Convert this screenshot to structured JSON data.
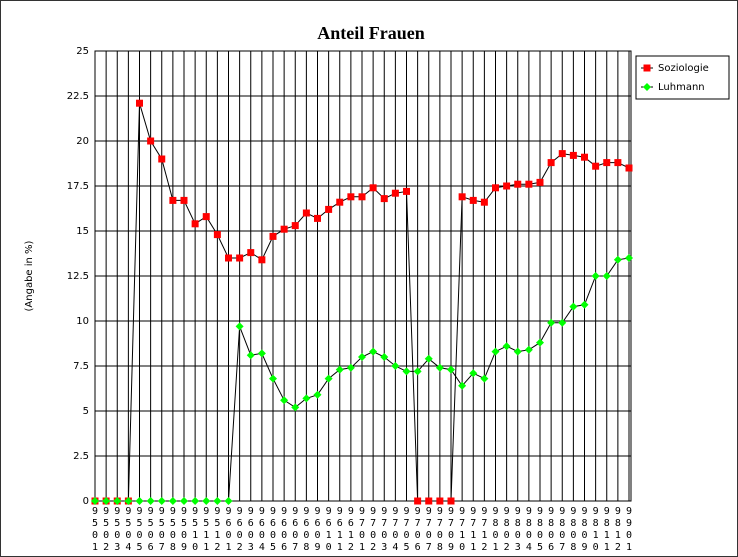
{
  "chart_data": {
    "type": "line",
    "title": "Anteil Frauen",
    "y_label": "(Angabe in %)",
    "categories": [
      "9501",
      "9502",
      "9503",
      "9504",
      "9505",
      "9506",
      "9507",
      "9508",
      "9509",
      "9510",
      "9511",
      "9512",
      "9601",
      "9602",
      "9603",
      "9604",
      "9605",
      "9606",
      "9607",
      "9608",
      "9609",
      "9610",
      "9611",
      "9612",
      "9701",
      "9702",
      "9703",
      "9704",
      "9705",
      "9706",
      "9707",
      "9708",
      "9709",
      "9710",
      "9711",
      "9712",
      "9801",
      "9802",
      "9803",
      "9804",
      "9805",
      "9806",
      "9807",
      "9808",
      "9809",
      "9810",
      "9811",
      "9812",
      "9901"
    ],
    "series": [
      {
        "name": "Soziologie",
        "color": "#ff0000",
        "marker": "square",
        "values": [
          0,
          0,
          0,
          0,
          22.1,
          20.0,
          19.0,
          16.7,
          16.7,
          15.4,
          15.8,
          14.8,
          13.5,
          13.5,
          13.8,
          13.4,
          14.7,
          15.1,
          15.3,
          16.0,
          15.7,
          16.2,
          16.6,
          16.9,
          16.9,
          17.4,
          16.8,
          17.1,
          17.2,
          0,
          0,
          0,
          0,
          16.9,
          16.7,
          16.6,
          17.4,
          17.5,
          17.6,
          17.6,
          17.7,
          18.8,
          19.3,
          19.2,
          19.1,
          18.6,
          18.8,
          18.8,
          18.5
        ]
      },
      {
        "name": "Luhmann",
        "color": "#00ff00",
        "marker": "diamond",
        "values": [
          0,
          0,
          0,
          0,
          0,
          0,
          0,
          0,
          0,
          0,
          0,
          0,
          0,
          9.7,
          8.1,
          8.2,
          6.8,
          5.6,
          5.2,
          5.7,
          5.9,
          6.8,
          7.3,
          7.4,
          8.0,
          8.3,
          8.0,
          7.5,
          7.2,
          7.2,
          7.9,
          7.4,
          7.3,
          6.4,
          7.1,
          6.8,
          8.3,
          8.6,
          8.3,
          8.4,
          8.8,
          9.9,
          9.9,
          10.8,
          10.9,
          12.5,
          12.5,
          13.4,
          13.5
        ]
      }
    ],
    "line_color": "#000000",
    "ylim": [
      0,
      25
    ],
    "yticks": [
      0,
      2.5,
      5,
      7.5,
      10,
      12.5,
      15,
      17.5,
      20,
      22.5,
      25
    ],
    "grid": true,
    "legend": "top-right"
  }
}
